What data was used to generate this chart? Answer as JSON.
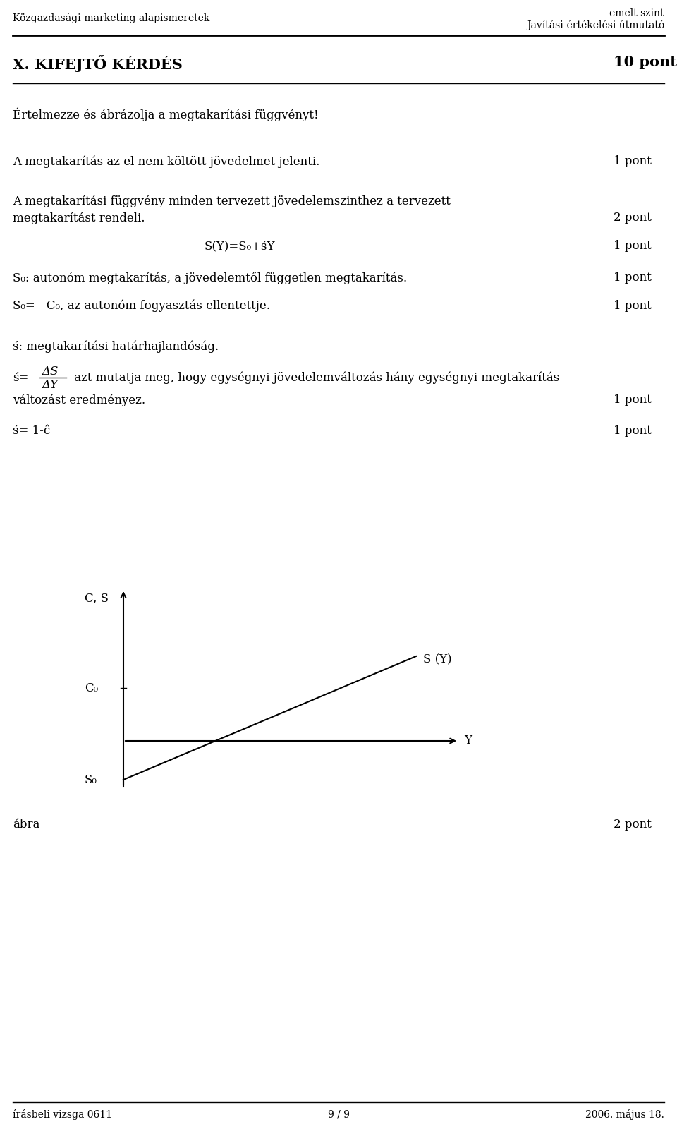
{
  "bg_color": "#ffffff",
  "text_color": "#000000",
  "page_width": 9.6,
  "page_height": 16.17,
  "header_left": "Közgazdasági-marketing alapismeretek",
  "header_right_line1": "emelt szint",
  "header_right_line2": "Javítási-értékelési útmutató",
  "section_title": "X. KIFEJTŐ KÉRDÉS",
  "section_points": "10 pont",
  "question": "Értelmezze és ábrázolja a megtakarítási függvényt!",
  "line1_text": "A megtakarítás az el nem költött jövedelmet jelenti.",
  "line1_points": "1 pont",
  "line2_text": "A megtakarítási függvény minden tervezett jövedelemszinthez a tervezett",
  "line2b_text": "megtakarítást rendeli.",
  "line2_points": "2 pont",
  "formula": "S(Y)=S₀+śY",
  "formula_points": "1 pont",
  "s0_desc": "S₀: autonóm megtakarítás, a jövedelemtől független megtakarítás.",
  "s0_points": "1 pont",
  "s0eq_desc": "S₀= - C₀, az autonóm fogyasztás ellentettje.",
  "s0eq_points": "1 pont",
  "shat_desc": "ś: megtakarítási határhajlandóság.",
  "shat_formula_prefix": "ś=",
  "shat_formula_num": "ΔS",
  "shat_formula_den": "ΔY",
  "shat_formula_suffix": " azt mutatja meg, hogy egységnyi jövedelemváltozás hány egységnyi megtakarítás",
  "shat_formula_line2": "változást eredményez.",
  "shat_formula_points": "1 pont",
  "shat_eq": "ś= 1-ĉ",
  "shat_eq_points": "1 pont",
  "abra_label": "ábra",
  "abra_points": "2 pont",
  "footer_left": "írásbeli vizsga 0611",
  "footer_center": "9 / 9",
  "footer_right": "2006. május 18.",
  "axis_label_y": "C, S",
  "axis_label_x": "Y",
  "label_C0": "C₀",
  "label_S0": "S₀",
  "label_SY": "S (Y)"
}
